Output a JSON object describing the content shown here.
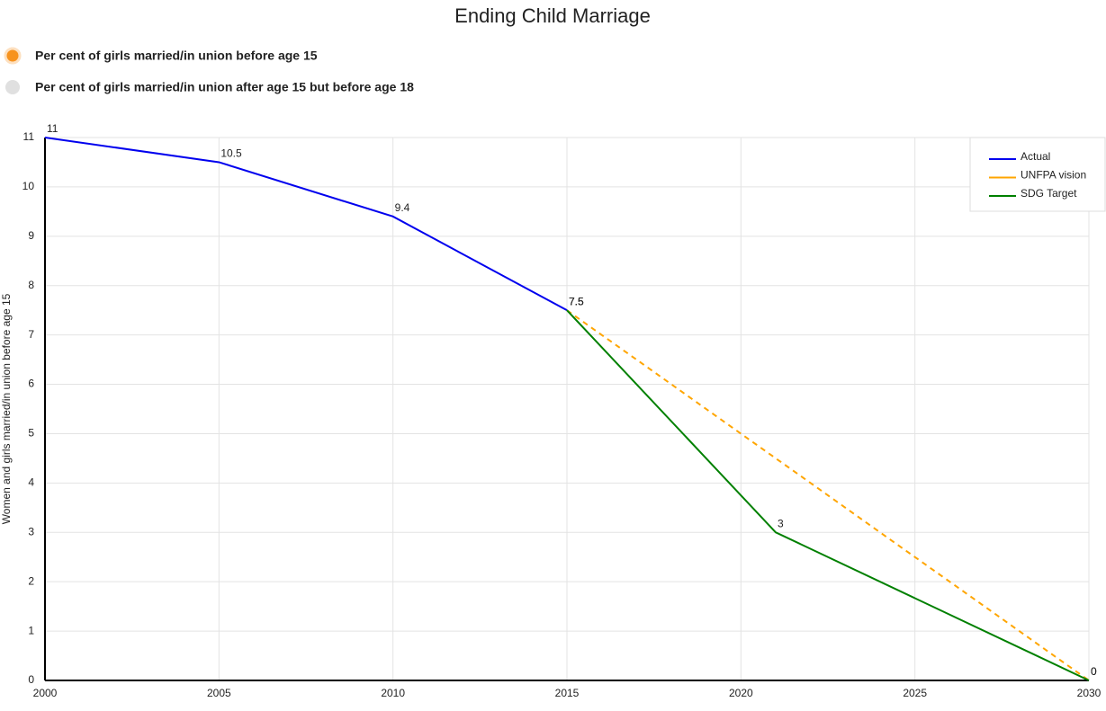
{
  "options": {
    "items": [
      "Per cent of girls married/in union before age 15",
      "Per cent of girls married/in union after age 15 but before age 18"
    ],
    "selected": 0
  },
  "chart_data": {
    "type": "line",
    "title": "Ending Child Marriage",
    "y_label": "Women and girls married/in union before age 15",
    "series": [
      {
        "name": "Actual",
        "color": "#0000ee",
        "dashed": false,
        "x": [
          2000,
          2005,
          2010,
          2015
        ],
        "values": [
          11,
          10.5,
          9.4,
          7.5
        ]
      },
      {
        "name": "UNFPA vision",
        "color": "#ffa500",
        "dashed": true,
        "x": [
          2015,
          2030
        ],
        "values": [
          7.5,
          0
        ]
      },
      {
        "name": "SDG Target",
        "color": "#008000",
        "dashed": false,
        "x": [
          2015,
          2021,
          2030
        ],
        "values": [
          7.5,
          3,
          0
        ]
      }
    ],
    "xlim": [
      2000,
      2030
    ],
    "xticks": [
      2000,
      2005,
      2010,
      2015,
      2020,
      2025,
      2030
    ],
    "ylim": [
      0,
      11
    ],
    "yticks": [
      0,
      1,
      2,
      3,
      4,
      5,
      6,
      7,
      8,
      9,
      10,
      11
    ],
    "grid": true,
    "legend": "top-right",
    "data_labels": true
  }
}
